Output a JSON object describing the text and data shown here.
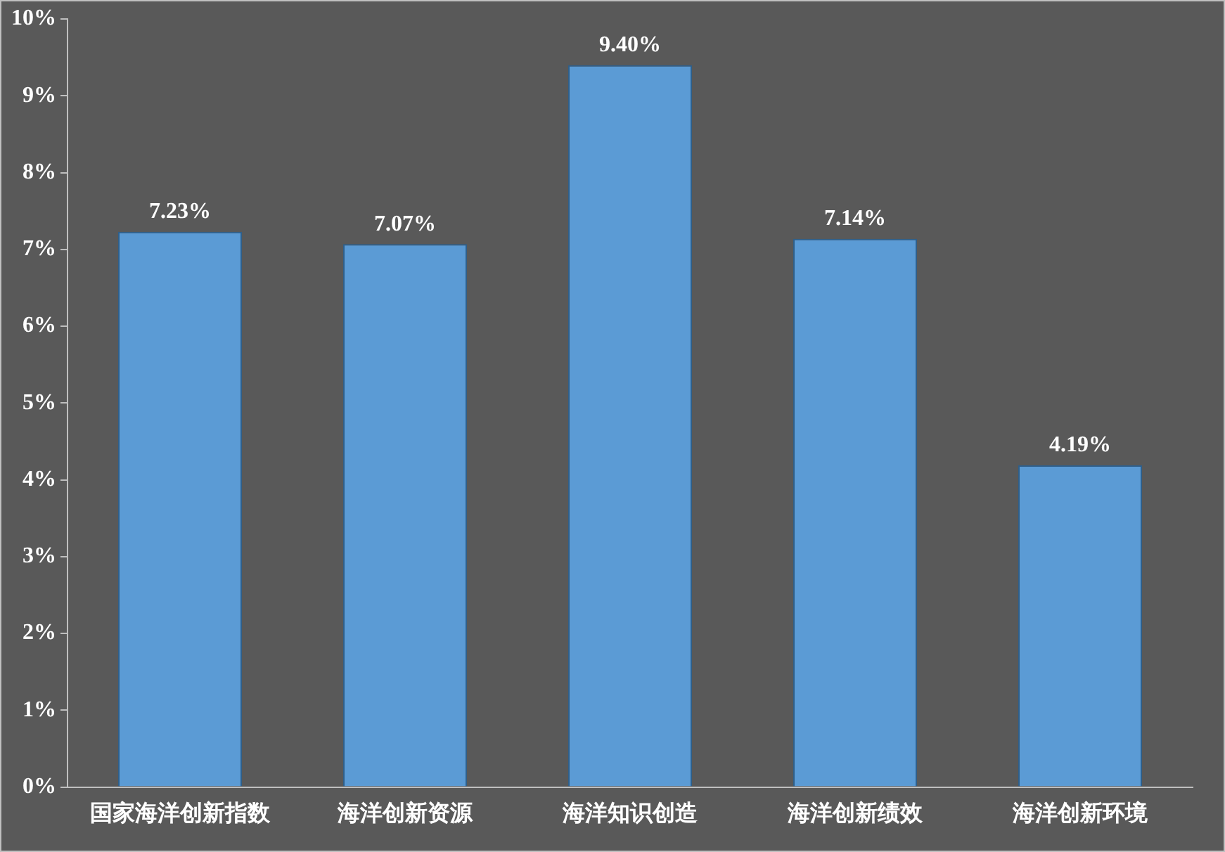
{
  "chart_data": {
    "type": "bar",
    "categories": [
      "国家海洋创新指数",
      "海洋创新资源",
      "海洋知识创造",
      "海洋创新绩效",
      "海洋创新环境"
    ],
    "values": [
      7.23,
      7.07,
      9.4,
      7.14,
      4.19
    ],
    "color": "#5b9bd5",
    "value_labels": [
      "7.23%",
      "7.07%",
      "9.40%",
      "7.14%",
      "4.19%"
    ],
    "ylim": [
      0,
      10
    ],
    "yticks": [
      {
        "value": 0,
        "label": "0%"
      },
      {
        "value": 1,
        "label": "1%"
      },
      {
        "value": 2,
        "label": "2%"
      },
      {
        "value": 3,
        "label": "3%"
      },
      {
        "value": 4,
        "label": "4%"
      },
      {
        "value": 5,
        "label": "5%"
      },
      {
        "value": 6,
        "label": "6%"
      },
      {
        "value": 7,
        "label": "7%"
      },
      {
        "value": 8,
        "label": "8%"
      },
      {
        "value": 9,
        "label": "9%"
      },
      {
        "value": 10,
        "label": "10%"
      }
    ],
    "grid": false
  }
}
